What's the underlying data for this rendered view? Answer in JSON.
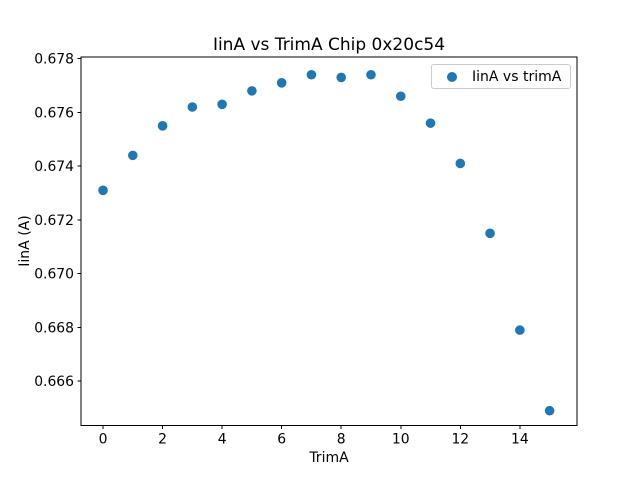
{
  "chart_data": {
    "type": "scatter",
    "title": "IinA vs TrimA Chip 0x20c54",
    "xlabel": "TrimA",
    "ylabel": "IinA (A)",
    "legend_label": "IinA vs trimA",
    "legend_position": "upper right",
    "marker_color": "#1f77b4",
    "grid": false,
    "x": [
      0,
      1,
      2,
      3,
      4,
      5,
      6,
      7,
      8,
      9,
      10,
      11,
      12,
      13,
      14,
      15
    ],
    "y": [
      0.6731,
      0.6744,
      0.6755,
      0.6762,
      0.6763,
      0.6768,
      0.6771,
      0.6774,
      0.6773,
      0.6774,
      0.6766,
      0.6756,
      0.6741,
      0.6715,
      0.6679,
      0.6649
    ],
    "xlim": [
      -0.74,
      15.92
    ],
    "ylim": [
      0.66435,
      0.67806
    ],
    "x_ticks": [
      0,
      2,
      4,
      6,
      8,
      10,
      12,
      14
    ],
    "x_tick_labels": [
      "0",
      "2",
      "4",
      "6",
      "8",
      "10",
      "12",
      "14"
    ],
    "y_ticks": [
      0.666,
      0.668,
      0.67,
      0.672,
      0.674,
      0.676,
      0.678
    ],
    "y_tick_labels": [
      "0.666",
      "0.668",
      "0.670",
      "0.672",
      "0.674",
      "0.676",
      "0.678"
    ]
  }
}
